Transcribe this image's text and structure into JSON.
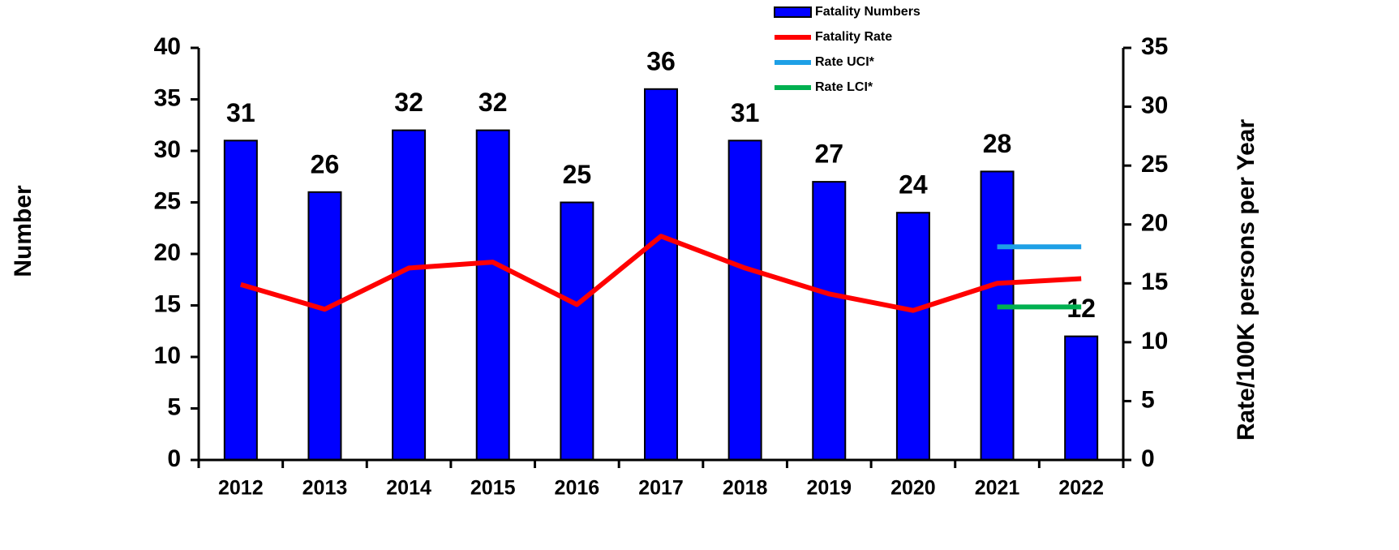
{
  "chart_data": {
    "type": "bar",
    "y_label": "Number",
    "y2_label": "Rate/100K persons per Year",
    "categories": [
      "2012",
      "2013",
      "2014",
      "2015",
      "2016",
      "2017",
      "2018",
      "2019",
      "2020",
      "2021",
      "2022"
    ],
    "series": [
      {
        "name": "Fatality Numbers",
        "color": "#0000ff",
        "type": "bar",
        "values": [
          31,
          26,
          32,
          32,
          25,
          36,
          31,
          27,
          24,
          28,
          12
        ]
      },
      {
        "name": "Fatality Rate",
        "color": "#ff0000",
        "type": "line",
        "axis": "y2",
        "values": [
          14.9,
          12.8,
          16.3,
          16.8,
          13.2,
          19.0,
          16.3,
          14.1,
          12.7,
          15.0,
          15.4
        ]
      },
      {
        "name": "Rate UCI*",
        "color": "#1ea0e6",
        "type": "line",
        "axis": "y2",
        "values": [
          null,
          null,
          null,
          null,
          null,
          null,
          null,
          null,
          null,
          18.1,
          18.1
        ]
      },
      {
        "name": "Rate LCI*",
        "color": "#00b050",
        "type": "line",
        "axis": "y2",
        "values": [
          null,
          null,
          null,
          null,
          null,
          null,
          null,
          null,
          null,
          13.0,
          13.0
        ]
      }
    ],
    "ylim": [
      0,
      40
    ],
    "yticks": [
      0,
      5,
      10,
      15,
      20,
      25,
      30,
      35,
      40
    ],
    "y2lim": [
      0,
      35
    ],
    "y2ticks": [
      0,
      5,
      10,
      15,
      20,
      25,
      30,
      35
    ],
    "legend": "top"
  }
}
